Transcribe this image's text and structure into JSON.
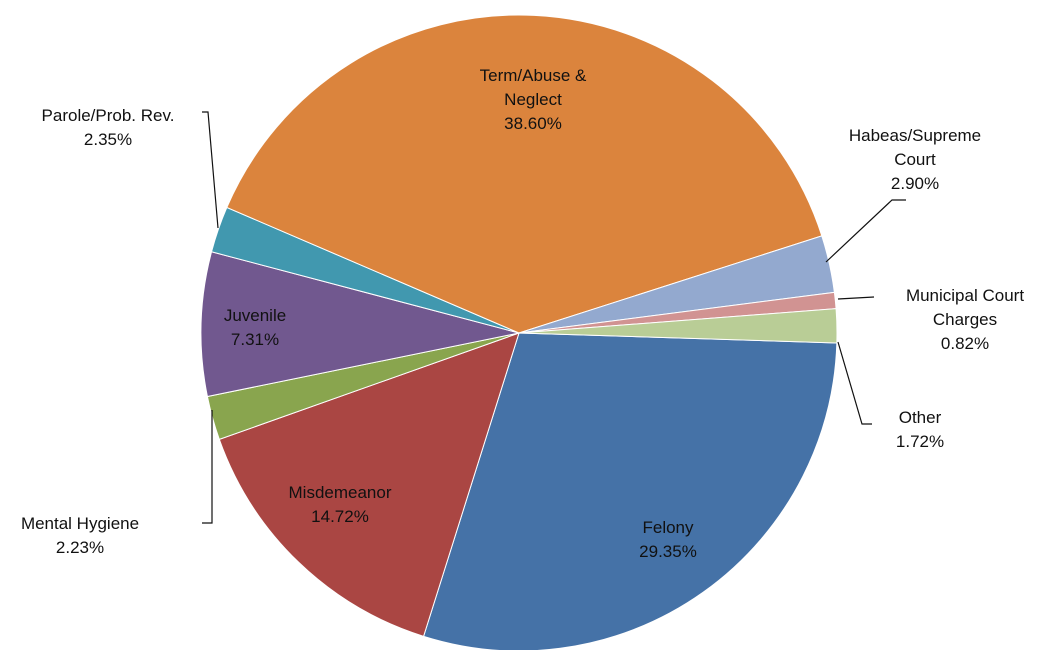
{
  "chart_data": {
    "type": "pie",
    "categories": [
      "Felony",
      "Misdemeanor",
      "Mental Hygiene",
      "Juvenile",
      "Parole/Prob. Rev.",
      "Term/Abuse & Neglect",
      "Habeas/Supreme Court",
      "Municipal Court Charges",
      "Other"
    ],
    "values": [
      29.35,
      14.72,
      2.23,
      7.31,
      2.35,
      38.6,
      2.9,
      0.82,
      1.72
    ],
    "value_labels": [
      "29.35%",
      "14.72%",
      "2.23%",
      "7.31%",
      "2.35%",
      "38.60%",
      "2.90%",
      "0.82%",
      "1.72%"
    ],
    "colors": [
      "#4572a7",
      "#aa4643",
      "#89a54e",
      "#71588f",
      "#4198af",
      "#db843d",
      "#93a9cf",
      "#d19392",
      "#b9cd96"
    ]
  }
}
